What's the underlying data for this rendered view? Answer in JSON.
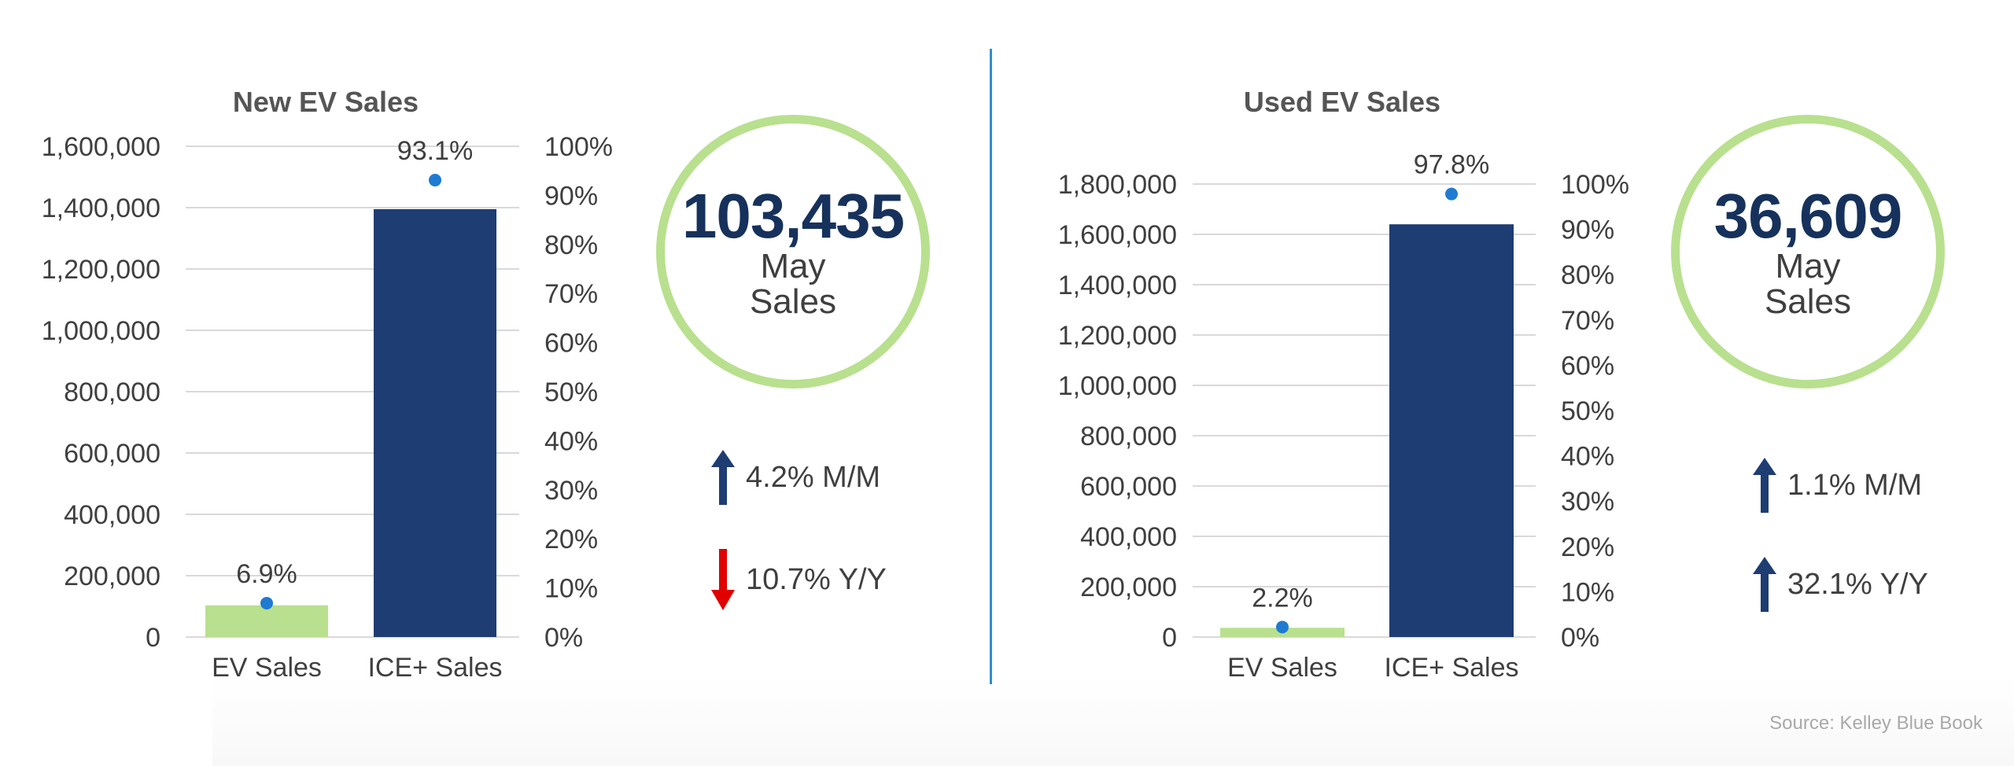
{
  "colors": {
    "ev_bar": "#b8e08e",
    "ice_bar": "#1e3d73",
    "share_point": "#1f7bd1",
    "gridline": "#d9d9d9",
    "text": "#3f3f3f",
    "kpi_ring": "#b8e08e",
    "up_arrow": "#1e3d73",
    "down_arrow": "#e00000",
    "divider": "#2f8ecb"
  },
  "chart_data": [
    {
      "type": "bar",
      "title": "New EV Sales",
      "categories": [
        "EV Sales",
        "ICE+ Sales"
      ],
      "series": [
        {
          "type": "bar",
          "values": [
            103435,
            1395000
          ]
        },
        {
          "type": "scatter",
          "axis": "right",
          "values": [
            6.9,
            93.1
          ]
        }
      ],
      "ylim": [
        0,
        1600000
      ],
      "yticks": [
        "0",
        "200,000",
        "400,000",
        "600,000",
        "800,000",
        "1,000,000",
        "1,200,000",
        "1,400,000",
        "1,600,000"
      ],
      "y2lim": [
        0,
        100
      ],
      "y2ticks": [
        "0%",
        "10%",
        "20%",
        "30%",
        "40%",
        "50%",
        "60%",
        "70%",
        "80%",
        "90%",
        "100%"
      ],
      "point_labels": [
        "6.9%",
        "93.1%"
      ],
      "grid": true
    },
    {
      "type": "bar",
      "title": "Used EV Sales",
      "categories": [
        "EV Sales",
        "ICE+ Sales"
      ],
      "series": [
        {
          "type": "bar",
          "values": [
            36609,
            1640000
          ]
        },
        {
          "type": "scatter",
          "axis": "right",
          "values": [
            2.2,
            97.8
          ]
        }
      ],
      "ylim": [
        0,
        1800000
      ],
      "yticks": [
        "0",
        "200,000",
        "400,000",
        "600,000",
        "800,000",
        "1,000,000",
        "1,200,000",
        "1,400,000",
        "1,600,000",
        "1,800,000"
      ],
      "y2lim": [
        0,
        100
      ],
      "y2ticks": [
        "0%",
        "10%",
        "20%",
        "30%",
        "40%",
        "50%",
        "60%",
        "70%",
        "80%",
        "90%",
        "100%"
      ],
      "point_labels": [
        "2.2%",
        "97.8%"
      ],
      "grid": true
    }
  ],
  "kpis": [
    {
      "value": "103,435",
      "label_line1": "May",
      "label_line2": "Sales",
      "changes": [
        {
          "direction": "up",
          "icon": "arrow-up-icon",
          "text": "4.2% M/M"
        },
        {
          "direction": "down",
          "icon": "arrow-down-icon",
          "text": "10.7% Y/Y"
        }
      ]
    },
    {
      "value": "36,609",
      "label_line1": "May",
      "label_line2": "Sales",
      "changes": [
        {
          "direction": "up",
          "icon": "arrow-up-icon",
          "text": "1.1% M/M"
        },
        {
          "direction": "up",
          "icon": "arrow-up-icon",
          "text": "32.1% Y/Y"
        }
      ]
    }
  ],
  "source": "Source: Kelley Blue Book"
}
